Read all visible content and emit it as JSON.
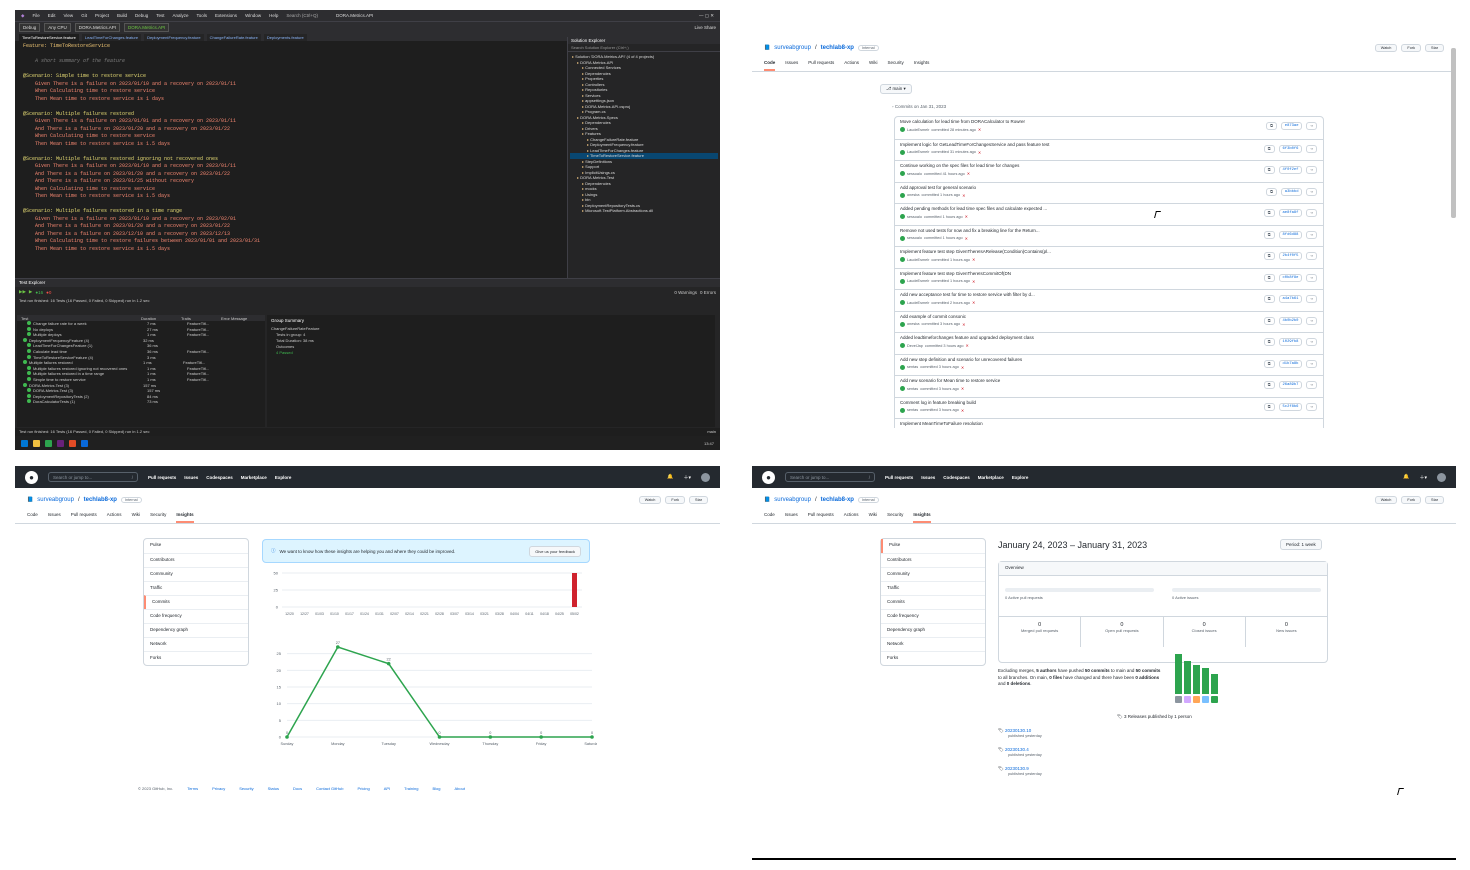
{
  "vs": {
    "menu": [
      "File",
      "Edit",
      "View",
      "Git",
      "Project",
      "Build",
      "Debug",
      "Test",
      "Analyze",
      "Tools",
      "Extensions",
      "Window",
      "Help"
    ],
    "search": "Search (Ctrl+Q)",
    "solution_name": "DORA.Metrics.API",
    "toolbar": {
      "config": "Debug",
      "platform": "Any CPU",
      "project": "DORA.Metrics.API",
      "run": "DORA.Metrics.API",
      "live_share": "Live Share"
    },
    "tabs": [
      "TimeToRestoreService.feature",
      "LeadTimeForChanges.feature",
      "DeploymentFrequency.feature",
      "ChangeFailureRate.feature",
      "Deployments.feature"
    ],
    "editor_lines": [
      {
        "cls": "feat",
        "text": "Feature: TimeToRestoreService"
      },
      {
        "cls": "blank",
        "text": ""
      },
      {
        "cls": "faded",
        "text": "    A short summary of the feature"
      },
      {
        "cls": "blank",
        "text": ""
      },
      {
        "cls": "scen",
        "text": "@Scenario: Simple time to restore service"
      },
      {
        "cls": "given",
        "text": "    Given There is a failure on 2023/01/10 and a recovery on 2023/01/11"
      },
      {
        "cls": "given",
        "text": "    When Calculating time to restore service"
      },
      {
        "cls": "given",
        "text": "    Then Mean time to restore service is 1 days"
      },
      {
        "cls": "blank",
        "text": ""
      },
      {
        "cls": "scen",
        "text": "@Scenario: Multiple failures restored"
      },
      {
        "cls": "given",
        "text": "    Given There is a failure on 2023/01/01 and a recovery on 2023/01/11"
      },
      {
        "cls": "given",
        "text": "    And There is a failure on 2023/01/20 and a recovery on 2023/01/22"
      },
      {
        "cls": "given",
        "text": "    When Calculating time to restore service"
      },
      {
        "cls": "given",
        "text": "    Then Mean time to restore service is 1.5 days"
      },
      {
        "cls": "blank",
        "text": ""
      },
      {
        "cls": "scen",
        "text": "@Scenario: Multiple failures restored ignoring not recovered ones"
      },
      {
        "cls": "given",
        "text": "    Given There is a failure on 2023/01/10 and a recovery on 2023/01/11"
      },
      {
        "cls": "given",
        "text": "    And There is a failure on 2023/01/20 and a recovery on 2023/01/22"
      },
      {
        "cls": "given",
        "text": "    And There is a failure on 2023/01/25 without recovery"
      },
      {
        "cls": "given",
        "text": "    When Calculating time to restore service"
      },
      {
        "cls": "given",
        "text": "    Then Mean time to restore service is 1.5 days"
      },
      {
        "cls": "blank",
        "text": ""
      },
      {
        "cls": "scen",
        "text": "@Scenario: Multiple failures restored in a time range"
      },
      {
        "cls": "given",
        "text": "    Given There is a failure on 2023/01/10 and a recovery on 2023/02/01"
      },
      {
        "cls": "given",
        "text": "    And There is a failure on 2023/01/20 and a recovery on 2023/01/22"
      },
      {
        "cls": "given",
        "text": "    And There is a failure on 2023/12/10 and a recovery on 2023/12/13"
      },
      {
        "cls": "given",
        "text": "    When Calculating time to restore failures between 2023/01/01 and 2023/01/31"
      },
      {
        "cls": "given",
        "text": "    Then Mean time to restore service is 1.5 days"
      }
    ],
    "solution_explorer_title": "Solution Explorer",
    "solution_search": "Search Solution Explorer (Ctrl+;)",
    "solution_items": [
      {
        "t": "Solution 'DORA.Metrics.API' (4 of 4 projects)",
        "d": 0,
        "sel": false
      },
      {
        "t": "DORA.Metrics.API",
        "d": 1,
        "sel": false
      },
      {
        "t": "Connected Services",
        "d": 2,
        "sel": false
      },
      {
        "t": "Dependencies",
        "d": 2,
        "sel": false
      },
      {
        "t": "Properties",
        "d": 2,
        "sel": false
      },
      {
        "t": "Controllers",
        "d": 2,
        "sel": false
      },
      {
        "t": "Repositories",
        "d": 2,
        "sel": false
      },
      {
        "t": "Services",
        "d": 2,
        "sel": false
      },
      {
        "t": "appsettings.json",
        "d": 2,
        "sel": false
      },
      {
        "t": "DORA.Metrics.API.csproj",
        "d": 2,
        "sel": false
      },
      {
        "t": "Program.cs",
        "d": 2,
        "sel": false
      },
      {
        "t": "DORA.Metrics.Specs",
        "d": 1,
        "sel": false
      },
      {
        "t": "Dependencies",
        "d": 2,
        "sel": false
      },
      {
        "t": "Drivers",
        "d": 2,
        "sel": false
      },
      {
        "t": "Features",
        "d": 2,
        "sel": false
      },
      {
        "t": "ChangeFailureRate.feature",
        "d": 3,
        "sel": false
      },
      {
        "t": "DeploymentFrequency.feature",
        "d": 3,
        "sel": false
      },
      {
        "t": "LeadTimeForChanges.feature",
        "d": 3,
        "sel": false
      },
      {
        "t": "TimeToRestoreService.feature",
        "d": 3,
        "sel": true
      },
      {
        "t": "StepDefinitions",
        "d": 2,
        "sel": false
      },
      {
        "t": "Support",
        "d": 2,
        "sel": false
      },
      {
        "t": "ImplicitUsings.cs",
        "d": 2,
        "sel": false
      },
      {
        "t": "DORA.Metrics.Test",
        "d": 1,
        "sel": false
      },
      {
        "t": "Dependencies",
        "d": 2,
        "sel": false
      },
      {
        "t": "mocks",
        "d": 2,
        "sel": false
      },
      {
        "t": "Usings",
        "d": 2,
        "sel": false
      },
      {
        "t": "bin",
        "d": 2,
        "sel": false
      },
      {
        "t": "DeploymentRepositoryTests.cs",
        "d": 2,
        "sel": false
      },
      {
        "t": "Microsoft.TestPlatform.Abstractions.dll",
        "d": 2,
        "sel": false
      }
    ],
    "test_explorer_title": "Test Explorer",
    "test_summary": "Test run finished: 16 Tests (16 Passed, 0 Failed, 0 Skipped) run in 1.2 sec",
    "test_headers": [
      "Test",
      "Duration",
      "Traits",
      "Error Message"
    ],
    "tests": [
      {
        "name": "Change failure rate for a week",
        "dur": "7 ms",
        "trait": "FeatureTitl..."
      },
      {
        "name": "No deploys",
        "dur": "27 ms",
        "trait": "FeatureTitl..."
      },
      {
        "name": "Multiple deploys",
        "dur": "1 ms",
        "trait": "FeatureTitl..."
      },
      {
        "name": "DeploymentFrequencyFeature (4)",
        "dur": "32 ms",
        "trait": ""
      },
      {
        "name": "LeadTimeForChangesFeature (1)",
        "dur": "36 ms",
        "trait": ""
      },
      {
        "name": "Calculate lead time",
        "dur": "36 ms",
        "trait": "FeatureTitl..."
      },
      {
        "name": "TimeToRestoreServiceFeature (4)",
        "dur": "3 ms",
        "trait": ""
      },
      {
        "name": "Multiple failures restored",
        "dur": "1 ms",
        "trait": "FeatureTitl..."
      },
      {
        "name": "Multiple failures restored ignoring not recovered ones",
        "dur": "1 ms",
        "trait": "FeatureTitl..."
      },
      {
        "name": "Multiple failures restored in a time range",
        "dur": "1 ms",
        "trait": "FeatureTitl..."
      },
      {
        "name": "Simple time to restore service",
        "dur": "1 ms",
        "trait": "FeatureTitl..."
      },
      {
        "name": "DORA.Metrics.Test (3)",
        "dur": "157 ms",
        "trait": ""
      },
      {
        "name": "DORA.Metrics.Test (3)",
        "dur": "157 ms",
        "trait": ""
      },
      {
        "name": "DeploymentRepositoryTests (2)",
        "dur": "84 ms",
        "trait": ""
      },
      {
        "name": "DoraCalculatorTests (1)",
        "dur": "73 ms",
        "trait": ""
      }
    ],
    "group_summary_title": "Group Summary",
    "group_detail": [
      "ChangeFailureRateFeature",
      "Tests in group: 4",
      "Total Duration: 38 ms",
      "Outcomes",
      "4 Passed"
    ],
    "warnings": "0 Warnings",
    "errors": "0 Errors",
    "status_left": "Test run finished: 16 Tests (16 Passed, 0 Failed, 0 Skipped) run in 1.2 sec",
    "status_right": "main",
    "clock": "13:47"
  },
  "commits_page": {
    "org": "surveabgroup",
    "repo": "techlab8-xp",
    "visibility": "Internal",
    "tabs": [
      "Code",
      "Issues",
      "Pull requests",
      "Actions",
      "Wiki",
      "Security",
      "Insights"
    ],
    "active_tab": "Code",
    "branch": "main",
    "date_header": "Commits on Jan 31, 2023",
    "actions": [
      "Watch",
      "Fork",
      "Star"
    ],
    "commits": [
      {
        "msg": "Move calculation for lead time from DORACalculator to Rowrer",
        "author": "LaudeEsmelr",
        "when": "committed 28 minutes ago",
        "sha": "e873ae"
      },
      {
        "msg": "Implement logic for GetLeadTimeForChangesService and pass feature test",
        "author": "LaudeEsmelr",
        "when": "committed 31 minutes ago",
        "sha": "6f3b0f6"
      },
      {
        "msg": "Continue working on the spec files for lead time for changes",
        "author": "sessoalo",
        "when": "committed 41 hours ago",
        "sha": "4f0f2ef"
      },
      {
        "msg": "Add approval test for general scenario",
        "author": "onesba",
        "when": "committed 1 hours ago",
        "sha": "a3bbbd"
      },
      {
        "msg": "Added pending methods for lead time spec files and calculate expected ...",
        "author": "sessoalo",
        "when": "committed 1 hours ago",
        "sha": "ae8fa8f"
      },
      {
        "msg": "Remove not used tests for now and fix a breaking line for the Return...",
        "author": "sessoalo",
        "when": "committed 1 hours ago",
        "sha": "8fd6d88"
      },
      {
        "msg": "Implement feature test step GivenThereIsARelease(Condition)Contains(pl...",
        "author": "LaudeEsmelr",
        "when": "committed 1 hours ago",
        "sha": "2b4f0f5"
      },
      {
        "msg": "Implement feature test step GivenThereIsCommitOf(DN",
        "author": "LaudeEsmelr",
        "when": "committed 1 hours ago",
        "sha": "c0b8f8e"
      },
      {
        "msg": "Add new acceptance test for time to restore service with filter by d...",
        "author": "LaudeEsmelr",
        "when": "committed 2 hours ago",
        "sha": "a4a7b61"
      },
      {
        "msg": "Add example of commit consonic",
        "author": "onesba",
        "when": "committed 3 hours ago",
        "sha": "4b0b2b0"
      },
      {
        "msg": "Added leadtimeforchanges feature and upgraded deployment class",
        "author": "DevelJap",
        "when": "committed 3 hours ago",
        "sha": "1029fb8"
      },
      {
        "msg": "Add new step definition and scenario for unrecovered failures",
        "author": "sentas",
        "when": "committed 3 hours ago",
        "sha": "d1b7a8b"
      },
      {
        "msg": "Add new scenario for Mean time to restore service",
        "author": "sentas",
        "when": "committed 3 hours ago",
        "sha": "26a89b7"
      },
      {
        "msg": "Comment log in feature breaking build",
        "author": "sentas",
        "when": "committed 3 hours ago",
        "sha": "5c2f8b6"
      },
      {
        "msg": "Implement MeanTimeToFailure resolution",
        "author": "",
        "when": "",
        "sha": ""
      }
    ]
  },
  "insights_page": {
    "search": "Search or jump to...",
    "nav": [
      "Pull requests",
      "Issues",
      "Codespaces",
      "Marketplace",
      "Explore"
    ],
    "org": "surveabgroup",
    "repo": "techlab8-xp",
    "visibility": "Internal",
    "tabs": [
      "Code",
      "Issues",
      "Pull requests",
      "Actions",
      "Wiki",
      "Security",
      "Insights"
    ],
    "active_tab": "Insights",
    "actions": [
      "Watch",
      "Fork",
      "Star"
    ],
    "side": [
      "Pulse",
      "Contributors",
      "Community",
      "Traffic",
      "Commits",
      "Code frequency",
      "Dependency graph",
      "Network",
      "Forks"
    ],
    "active_side": "Commits",
    "notice": "We want to know how these insights are helping you and where they could be improved.",
    "feedback": "Give us your feedback",
    "footer": [
      "© 2023 GitHub, Inc.",
      "Terms",
      "Privacy",
      "Security",
      "Status",
      "Docs",
      "Contact GitHub",
      "Pricing",
      "API",
      "Training",
      "Blog",
      "About"
    ]
  },
  "pulse_page": {
    "search": "Search or jump to...",
    "nav": [
      "Pull requests",
      "Issues",
      "Codespaces",
      "Marketplace",
      "Explore"
    ],
    "org": "surveabgroup",
    "repo": "techlab8-xp",
    "visibility": "Internal",
    "tabs": [
      "Code",
      "Issues",
      "Pull requests",
      "Actions",
      "Wiki",
      "Security",
      "Insights"
    ],
    "active_tab": "Insights",
    "actions": [
      "Watch",
      "Fork",
      "Star"
    ],
    "side": [
      "Pulse",
      "Contributors",
      "Community",
      "Traffic",
      "Commits",
      "Code frequency",
      "Dependency graph",
      "Network",
      "Forks"
    ],
    "active_side": "Pulse",
    "heading": "January 24, 2023 – January 31, 2023",
    "period": "Period: 1 week",
    "overview_title": "Overview",
    "active_prs": "0 Active pull requests",
    "active_issues": "0 Active issues",
    "stats": [
      {
        "num": "0",
        "label": "Merged pull requests"
      },
      {
        "num": "0",
        "label": "Open pull requests"
      },
      {
        "num": "0",
        "label": "Closed issues"
      },
      {
        "num": "0",
        "label": "New issues"
      }
    ],
    "summary_parts": [
      "Excluding merges, ",
      "5 authors",
      " have pushed ",
      "50 commits",
      " to main and ",
      "50 commits",
      " to all branches. On main, ",
      "0 files",
      " have changed and there have been ",
      "0 additions",
      " and ",
      "0 deletions",
      "."
    ],
    "author_bars": [
      100,
      82,
      72,
      66,
      50
    ],
    "releases_count": "3 Releases published by 1 person",
    "releases": [
      {
        "tag": "20230130.10",
        "when": "published yesterday"
      },
      {
        "tag": "20230130.4",
        "when": "published yesterday"
      },
      {
        "tag": "20230130.9",
        "when": "published yesterday"
      }
    ]
  },
  "chart_data": [
    {
      "type": "bar",
      "categories": [
        "12/20",
        "12/27",
        "01/03",
        "01/10",
        "01/17",
        "01/24",
        "01/31",
        "02/07",
        "02/14",
        "02/21",
        "02/28",
        "03/07",
        "03/14",
        "03/21",
        "03/28",
        "04/04",
        "04/11",
        "04/18",
        "04/25",
        "05/02"
      ],
      "values": [
        0,
        0,
        0,
        0,
        0,
        0,
        0,
        0,
        0,
        0,
        0,
        0,
        0,
        0,
        0,
        0,
        0,
        0,
        0,
        50
      ],
      "ylim": [
        0,
        50
      ],
      "yticks": [
        0,
        25,
        50
      ],
      "colors": {
        "bar": "#cf222e"
      }
    },
    {
      "type": "line",
      "categories": [
        "Sunday",
        "Monday",
        "Tuesday",
        "Wednesday",
        "Thursday",
        "Friday",
        "Saturday"
      ],
      "values": [
        0,
        27,
        22,
        0,
        0,
        0,
        0
      ],
      "ylim": [
        0,
        30
      ],
      "yticks": [
        0,
        5,
        10,
        15,
        20,
        25
      ],
      "colors": {
        "line": "#2da44e"
      }
    }
  ]
}
